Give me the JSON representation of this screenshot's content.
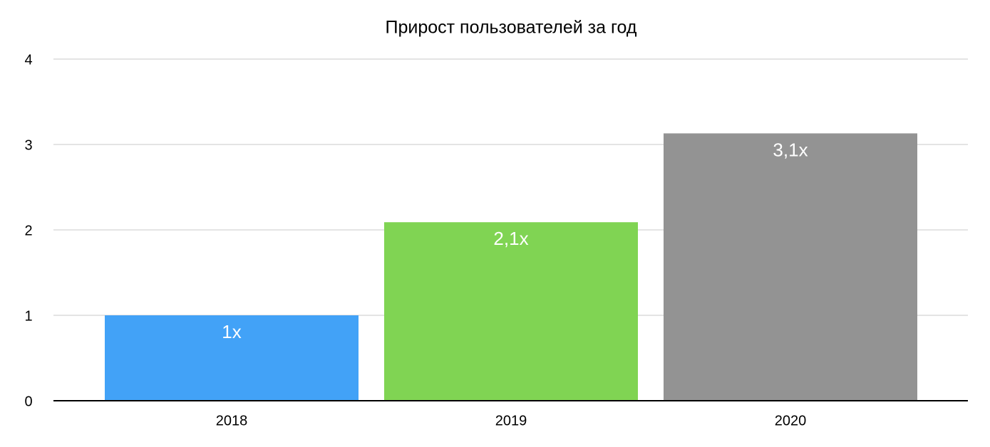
{
  "chart_data": {
    "type": "bar",
    "title": "Прирост пользователей за год",
    "categories": [
      "2018",
      "2019",
      "2020"
    ],
    "values": [
      1,
      2.09,
      3.13
    ],
    "value_labels": [
      "1x",
      "2,1x",
      "3,1x"
    ],
    "colors": [
      "#42a2f7",
      "#80d453",
      "#939393"
    ],
    "ylim": [
      0,
      4
    ],
    "yticks": [
      0,
      1,
      2,
      3,
      4
    ],
    "grid": true
  }
}
